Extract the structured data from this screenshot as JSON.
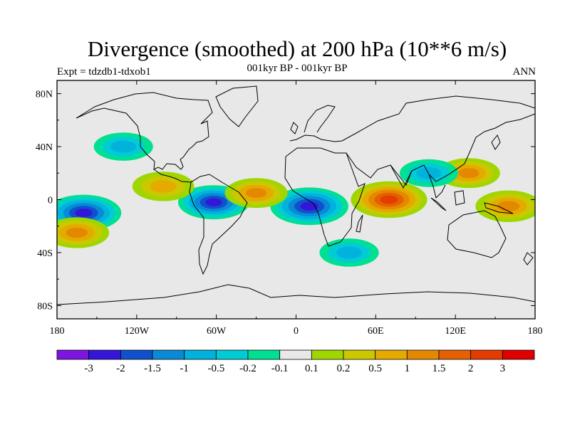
{
  "figure": {
    "title": "Divergence (smoothed) at 200 hPa (10**6 m/s)",
    "subtitle": "001kyr BP - 001kyr BP",
    "left_label": "Expt = tdzdb1-tdxob1",
    "right_label": "ANN"
  },
  "chart_data": {
    "type": "heatmap",
    "title": "Divergence (smoothed) at 200 hPa (10**6 m/s)",
    "x_range": [
      -180,
      180
    ],
    "y_range": [
      -90,
      90
    ],
    "x_ticks": [
      {
        "value": -180,
        "label": "180"
      },
      {
        "value": -120,
        "label": "120W"
      },
      {
        "value": -60,
        "label": "60W"
      },
      {
        "value": 0,
        "label": "0"
      },
      {
        "value": 60,
        "label": "60E"
      },
      {
        "value": 120,
        "label": "120E"
      },
      {
        "value": 180,
        "label": "180"
      }
    ],
    "y_ticks": [
      {
        "value": 80,
        "label": "80N"
      },
      {
        "value": 40,
        "label": "40N"
      },
      {
        "value": 0,
        "label": "0"
      },
      {
        "value": -40,
        "label": "40S"
      },
      {
        "value": -80,
        "label": "80S"
      }
    ],
    "colorbar": {
      "labels": [
        "-3",
        "-2",
        "-1.5",
        "-1",
        "-0.5",
        "-0.2",
        "-0.1",
        "0.1",
        "0.2",
        "0.5",
        "1",
        "1.5",
        "2",
        "3"
      ],
      "colors": [
        "#7e14e0",
        "#3416d8",
        "#1050cc",
        "#0a8ad6",
        "#00b2dc",
        "#00ccd4",
        "#00e092",
        "#e8e8e8",
        "#a0d600",
        "#ccc800",
        "#e4aa00",
        "#e48800",
        "#e46000",
        "#e43c00",
        "#e00000"
      ],
      "thresholds": [
        -3,
        -2,
        -1.5,
        -1,
        -0.5,
        -0.2,
        -0.1,
        0.1,
        0.2,
        0.5,
        1,
        1.5,
        2,
        3
      ]
    },
    "field_features": [
      {
        "lon": -160,
        "lat": -10,
        "value": -2.5
      },
      {
        "lon": -62,
        "lat": -2,
        "value": -2.0
      },
      {
        "lon": 10,
        "lat": -5,
        "value": -2.8
      },
      {
        "lon": 70,
        "lat": 0,
        "value": 2.6
      },
      {
        "lon": 160,
        "lat": -5,
        "value": 1.4
      },
      {
        "lon": 130,
        "lat": 20,
        "value": 1.0
      },
      {
        "lon": -100,
        "lat": 10,
        "value": 0.9
      },
      {
        "lon": -30,
        "lat": 5,
        "value": 1.0
      },
      {
        "lon": -165,
        "lat": -25,
        "value": 1.2
      },
      {
        "lon": 40,
        "lat": -40,
        "value": -0.6
      },
      {
        "lon": -130,
        "lat": 40,
        "value": -0.6
      },
      {
        "lon": 100,
        "lat": 20,
        "value": -0.5
      }
    ]
  }
}
